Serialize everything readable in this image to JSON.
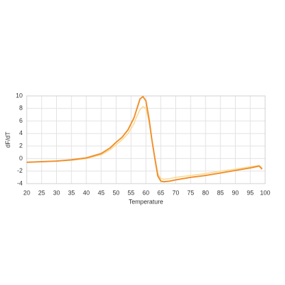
{
  "chart_data": {
    "type": "line",
    "y_label": "dF/dT",
    "x_label": "Temperature",
    "x": [
      20,
      25,
      30,
      35,
      40,
      45,
      48,
      50,
      52,
      54,
      56,
      57,
      58,
      59,
      60,
      61,
      62,
      63,
      64,
      65,
      66,
      68,
      70,
      75,
      80,
      85,
      90,
      95,
      98,
      99
    ],
    "series": [
      {
        "color": "#fbd98c",
        "values": [
          -0.6,
          -0.5,
          -0.4,
          -0.3,
          0,
          0.6,
          1.4,
          2.2,
          3.0,
          4.0,
          5.6,
          6.8,
          7.8,
          8.3,
          8.0,
          6.0,
          3.0,
          0.2,
          -2.4,
          -3.2,
          -3.3,
          -3.2,
          -3.0,
          -2.7,
          -2.4,
          -2.0,
          -1.7,
          -1.3,
          -1.1,
          -1.5
        ]
      },
      {
        "color": "#f0902e",
        "values": [
          -0.6,
          -0.5,
          -0.4,
          -0.2,
          0.1,
          0.8,
          1.7,
          2.6,
          3.4,
          4.6,
          6.5,
          8.0,
          9.5,
          9.9,
          9.2,
          6.5,
          3.0,
          0,
          -2.8,
          -3.6,
          -3.7,
          -3.6,
          -3.4,
          -3.0,
          -2.7,
          -2.3,
          -1.9,
          -1.5,
          -1.2,
          -1.7
        ]
      }
    ],
    "xlim": [
      20,
      100
    ],
    "xticks": [
      20,
      25,
      30,
      35,
      40,
      45,
      50,
      55,
      60,
      65,
      70,
      75,
      80,
      85,
      90,
      95,
      100
    ],
    "ylim": [
      -4,
      10
    ],
    "yticks": [
      -4,
      -2,
      0,
      2,
      4,
      6,
      8,
      10
    ],
    "grid": true
  }
}
